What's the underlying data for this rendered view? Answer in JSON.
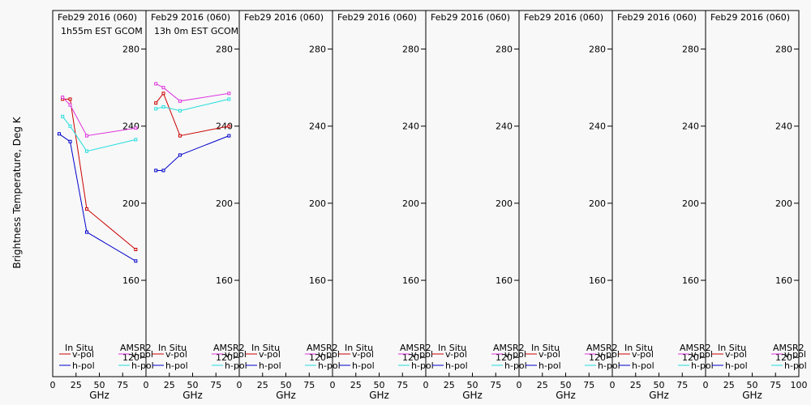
{
  "colors": {
    "insitu_vpol": "#cc0000",
    "insitu_hpol": "#0000cc",
    "amsr2_vpol": "#dd33dd",
    "amsr2_hpol": "#22dddd"
  },
  "ylabel": "Brightness Temperature, Deg K",
  "xlabel": "GHz",
  "legend": {
    "in_situ": "In Situ",
    "amsr2": "AMSR2",
    "vpol": "v-pol",
    "hpol": "h-pol"
  },
  "chart_data": {
    "type": "line",
    "ylim": [
      110,
      300
    ],
    "xlim": [
      0,
      100
    ],
    "yticks": [
      120,
      160,
      200,
      240,
      280
    ],
    "xticks": [
      0,
      25,
      50,
      75,
      100
    ],
    "x_tick_labels": [
      "0",
      "25",
      "50",
      "75",
      "100"
    ],
    "panels": [
      {
        "title": "Feb29 2016 (060)",
        "subtitle": "1h55m EST GCOM",
        "series": [
          {
            "name": "In Situ v-pol",
            "color_key": "insitu_vpol",
            "x": [
              10.6,
              18.7,
              36.5,
              89
            ],
            "y": [
              254,
              254,
              197,
              176
            ]
          },
          {
            "name": "In Situ h-pol",
            "color_key": "insitu_hpol",
            "x": [
              6.9,
              18.7,
              36.5,
              89
            ],
            "y": [
              236,
              232,
              185,
              170
            ]
          },
          {
            "name": "AMSR2 v-pol",
            "color_key": "amsr2_vpol",
            "x": [
              10.6,
              18.7,
              36.5,
              89
            ],
            "y": [
              255,
              251,
              235,
              239
            ]
          },
          {
            "name": "AMSR2 h-pol",
            "color_key": "amsr2_hpol",
            "x": [
              10.6,
              18.7,
              36.5,
              89
            ],
            "y": [
              245,
              240,
              227,
              233
            ]
          }
        ]
      },
      {
        "title": "Feb29 2016 (060)",
        "subtitle": "13h 0m EST GCOM",
        "series": [
          {
            "name": "In Situ v-pol",
            "color_key": "insitu_vpol",
            "x": [
              10.6,
              18.7,
              36.5,
              89
            ],
            "y": [
              252,
              257,
              235,
              240
            ]
          },
          {
            "name": "In Situ h-pol",
            "color_key": "insitu_hpol",
            "x": [
              10.6,
              18.7,
              36.5,
              89
            ],
            "y": [
              217,
              217,
              225,
              235
            ]
          },
          {
            "name": "AMSR2 v-pol",
            "color_key": "amsr2_vpol",
            "x": [
              10.6,
              18.7,
              36.5,
              89
            ],
            "y": [
              262,
              260,
              253,
              257
            ]
          },
          {
            "name": "AMSR2 h-pol",
            "color_key": "amsr2_hpol",
            "x": [
              10.6,
              18.7,
              36.5,
              89
            ],
            "y": [
              249,
              250,
              248,
              254
            ]
          }
        ]
      },
      {
        "title": "Feb29 2016 (060)",
        "subtitle": "",
        "series": []
      },
      {
        "title": "Feb29 2016 (060)",
        "subtitle": "",
        "series": []
      },
      {
        "title": "Feb29 2016 (060)",
        "subtitle": "",
        "series": []
      },
      {
        "title": "Feb29 2016 (060)",
        "subtitle": "",
        "series": []
      },
      {
        "title": "Feb29 2016 (060)",
        "subtitle": "",
        "series": []
      },
      {
        "title": "Feb29 2016 (060)",
        "subtitle": "",
        "series": []
      }
    ]
  }
}
